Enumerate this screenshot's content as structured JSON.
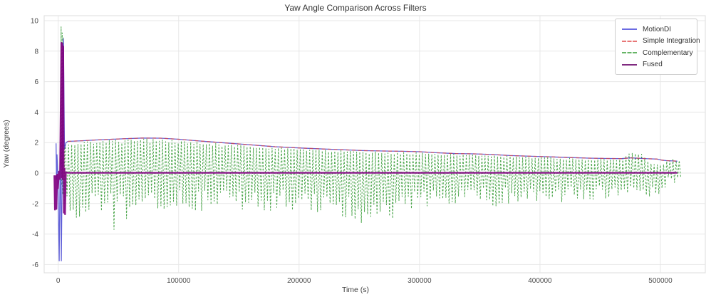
{
  "figure": {
    "bg": "#ffffff",
    "grid_color": "#e7e7e7",
    "spine_color": "#dcdcdc",
    "tick_color": "#4d4d4d"
  },
  "chart_data": {
    "type": "line",
    "title": "Yaw Angle Comparison Across Filters",
    "xlabel": "Time (s)",
    "ylabel": "Yaw (degrees)",
    "xlim": [
      -12000,
      537000
    ],
    "ylim": [
      -6.6,
      10.35
    ],
    "x_ticks": [
      0,
      100000,
      200000,
      300000,
      400000,
      500000
    ],
    "y_ticks": [
      10,
      8,
      6,
      4,
      2,
      0,
      -2,
      -4,
      -6
    ],
    "grid": true,
    "legend_position": "upper right",
    "series": [
      {
        "name": "MotionDI",
        "color": "#3a3ad0",
        "legend_color": "#6b6be2",
        "style": "solid",
        "width": 1.3,
        "opacity": 0.8,
        "transient": [
          [
            -1800,
            1.95
          ],
          [
            -1400,
            -0.4
          ],
          [
            -1000,
            1.2
          ],
          [
            -300,
            -0.2
          ],
          [
            800,
            -5.75
          ],
          [
            1800,
            2.0
          ],
          [
            2600,
            -5.75
          ],
          [
            3400,
            1.0
          ],
          [
            4300,
            8.8
          ],
          [
            5200,
            1.6
          ],
          [
            6500,
            2.0
          ]
        ],
        "follows": "drift_points"
      },
      {
        "name": "Simple Integration",
        "color": "#dd4444",
        "legend_color": "#e87777",
        "style": "dashed",
        "width": 1.3,
        "opacity": 0.75,
        "follows": "drift_points"
      },
      {
        "name": "Complementary",
        "color": "#008000",
        "legend_color": "#66b566",
        "style": "dashed",
        "width": 1.0,
        "opacity": 0.7,
        "transient": [
          [
            1800,
            0.3
          ],
          [
            2400,
            9.6
          ],
          [
            2900,
            -0.8
          ],
          [
            3300,
            9.2
          ],
          [
            3800,
            -1.4
          ],
          [
            4300,
            8.9
          ],
          [
            4900,
            -2.0
          ],
          [
            5400,
            1.8
          ]
        ],
        "oscillation": {
          "t_start": 6000,
          "t_end": 518000,
          "half_period_s": 1300,
          "top_envelope": "env_top",
          "bottom_envelope": "env_bottom"
        }
      },
      {
        "name": "Fused",
        "color": "#800080",
        "legend_color": "#802a80",
        "style": "solid",
        "width": 2.3,
        "opacity": 0.92,
        "points": [
          [
            -3200,
            -0.15
          ],
          [
            -2700,
            -2.4
          ],
          [
            -2100,
            -0.2
          ],
          [
            -1500,
            -2.35
          ],
          [
            -900,
            -0.1
          ],
          [
            -200,
            -1.0
          ],
          [
            600,
            0.1
          ],
          [
            1500,
            -0.4
          ],
          [
            2600,
            8.55
          ],
          [
            3000,
            -0.3
          ],
          [
            3400,
            8.5
          ],
          [
            3800,
            -0.4
          ],
          [
            4200,
            8.3
          ],
          [
            4700,
            -2.6
          ],
          [
            5200,
            0.3
          ],
          [
            5700,
            -2.7
          ],
          [
            6300,
            0.05
          ],
          [
            8000,
            0.02
          ],
          [
            514000,
            0.02
          ]
        ]
      }
    ],
    "drift_points": [
      [
        8000,
        2.08
      ],
      [
        20000,
        2.12
      ],
      [
        30000,
        2.17
      ],
      [
        50000,
        2.24
      ],
      [
        70000,
        2.3
      ],
      [
        85000,
        2.29
      ],
      [
        100000,
        2.22
      ],
      [
        115000,
        2.12
      ],
      [
        135000,
        2.0
      ],
      [
        160000,
        1.85
      ],
      [
        180000,
        1.73
      ],
      [
        200000,
        1.65
      ],
      [
        220000,
        1.58
      ],
      [
        240000,
        1.52
      ],
      [
        255000,
        1.47
      ],
      [
        270000,
        1.45
      ],
      [
        285000,
        1.43
      ],
      [
        300000,
        1.4
      ],
      [
        315000,
        1.33
      ],
      [
        330000,
        1.28
      ],
      [
        345000,
        1.26
      ],
      [
        360000,
        1.22
      ],
      [
        375000,
        1.15
      ],
      [
        395000,
        1.1
      ],
      [
        410000,
        1.06
      ],
      [
        425000,
        1.02
      ],
      [
        440000,
        0.98
      ],
      [
        455000,
        0.96
      ],
      [
        468000,
        0.95
      ],
      [
        475000,
        1.0
      ],
      [
        482000,
        0.97
      ],
      [
        490000,
        0.94
      ],
      [
        497000,
        0.92
      ],
      [
        501000,
        0.85
      ],
      [
        505000,
        0.82
      ],
      [
        510000,
        0.8
      ],
      [
        514000,
        0.78
      ]
    ],
    "env_top": [
      [
        6000,
        2.0
      ],
      [
        15000,
        2.05
      ],
      [
        30000,
        2.1
      ],
      [
        50000,
        2.18
      ],
      [
        70000,
        2.25
      ],
      [
        90000,
        2.2
      ],
      [
        110000,
        2.1
      ],
      [
        135000,
        1.95
      ],
      [
        160000,
        1.8
      ],
      [
        185000,
        1.68
      ],
      [
        200000,
        1.6
      ],
      [
        220000,
        1.52
      ],
      [
        240000,
        1.47
      ],
      [
        260000,
        1.42
      ],
      [
        280000,
        1.38
      ],
      [
        300000,
        1.35
      ],
      [
        320000,
        1.27
      ],
      [
        340000,
        1.23
      ],
      [
        360000,
        1.18
      ],
      [
        380000,
        1.1
      ],
      [
        400000,
        1.04
      ],
      [
        420000,
        0.99
      ],
      [
        440000,
        0.94
      ],
      [
        455000,
        0.9
      ],
      [
        465000,
        0.85
      ],
      [
        470000,
        1.1
      ],
      [
        474000,
        1.38
      ],
      [
        480000,
        1.42
      ],
      [
        485000,
        1.3
      ],
      [
        489000,
        0.9
      ],
      [
        493000,
        0.6
      ],
      [
        499000,
        0.55
      ],
      [
        503000,
        0.6
      ],
      [
        506000,
        0.85
      ],
      [
        510000,
        0.9
      ],
      [
        514000,
        0.85
      ],
      [
        518000,
        0.8
      ]
    ],
    "env_bottom": [
      [
        6000,
        -2.9
      ],
      [
        12000,
        -3.2
      ],
      [
        18000,
        -2.9
      ],
      [
        24000,
        -2.6
      ],
      [
        32000,
        -2.8
      ],
      [
        40000,
        -2.6
      ],
      [
        44000,
        -2.8
      ],
      [
        46000,
        -4.9
      ],
      [
        48500,
        -2.8
      ],
      [
        56000,
        -3.25
      ],
      [
        64000,
        -2.5
      ],
      [
        75000,
        -2.3
      ],
      [
        90000,
        -2.65
      ],
      [
        105000,
        -2.35
      ],
      [
        120000,
        -2.55
      ],
      [
        135000,
        -2.2
      ],
      [
        150000,
        -2.5
      ],
      [
        163500,
        -2.7
      ],
      [
        166000,
        -4.6
      ],
      [
        168500,
        -2.7
      ],
      [
        180000,
        -2.35
      ],
      [
        195000,
        -2.6
      ],
      [
        210000,
        -2.9
      ],
      [
        222000,
        -3.1
      ],
      [
        232000,
        -2.85
      ],
      [
        242000,
        -3.25
      ],
      [
        250000,
        -3.55
      ],
      [
        258000,
        -3.0
      ],
      [
        266000,
        -3.2
      ],
      [
        275000,
        -3.35
      ],
      [
        283000,
        -3.3
      ],
      [
        290000,
        -2.6
      ],
      [
        300000,
        -2.25
      ],
      [
        312000,
        -2.45
      ],
      [
        324000,
        -2.05
      ],
      [
        336000,
        -2.3
      ],
      [
        348000,
        -2.0
      ],
      [
        360000,
        -2.25
      ],
      [
        372000,
        -1.95
      ],
      [
        384000,
        -2.15
      ],
      [
        396000,
        -1.9
      ],
      [
        408000,
        -2.2
      ],
      [
        420000,
        -1.9
      ],
      [
        432000,
        -2.1
      ],
      [
        444000,
        -1.85
      ],
      [
        456000,
        -1.7
      ],
      [
        464000,
        -1.5
      ],
      [
        470000,
        -1.35
      ],
      [
        476000,
        -1.55
      ],
      [
        482000,
        -1.2
      ],
      [
        488000,
        -1.55
      ],
      [
        494000,
        -1.7
      ],
      [
        500000,
        -1.7
      ],
      [
        504000,
        -1.2
      ],
      [
        506500,
        -0.55
      ],
      [
        511000,
        -0.65
      ],
      [
        515000,
        -0.5
      ],
      [
        518000,
        -0.4
      ]
    ]
  }
}
